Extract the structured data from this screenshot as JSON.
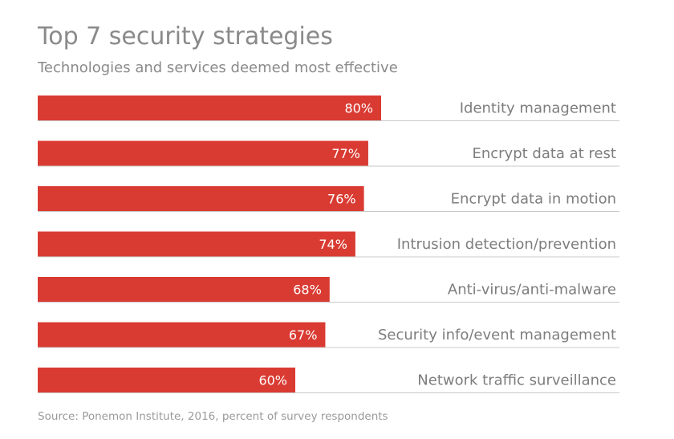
{
  "chart_data": {
    "type": "bar",
    "orientation": "horizontal",
    "title": "Top 7 security strategies",
    "subtitle": "Technologies and services deemed most effective",
    "categories": [
      "Identity management",
      "Encrypt data at rest",
      "Encrypt data in motion",
      "Intrusion detection/prevention",
      "Anti-virus/anti-malware",
      "Security info/event management",
      "Network traffic surveillance"
    ],
    "values": [
      80,
      77,
      76,
      74,
      68,
      67,
      60
    ],
    "value_labels": [
      "80%",
      "77%",
      "76%",
      "74%",
      "68%",
      "67%",
      "60%"
    ],
    "unit": "%",
    "xlim": [
      0,
      100
    ],
    "xlabel": "",
    "ylabel": "",
    "grid": false,
    "bar_color": "#d93b32",
    "separator_color": "#c8c8c8",
    "source": "Source: Ponemon Institute, 2016, percent of survey respondents"
  }
}
